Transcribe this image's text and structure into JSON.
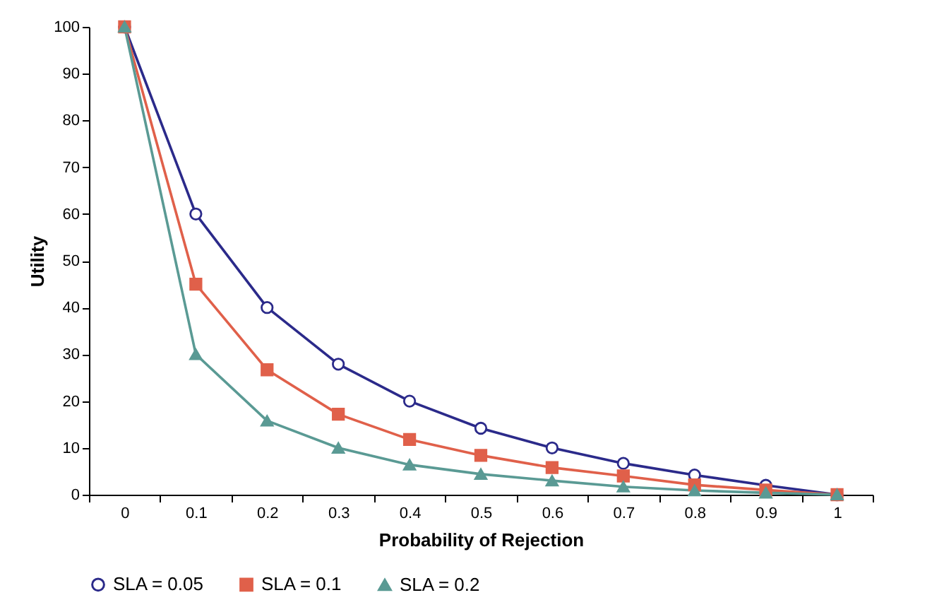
{
  "chart_data": {
    "type": "line",
    "xlabel": "Probability of Rejection",
    "ylabel": "Utility",
    "categories": [
      "0",
      "0.1",
      "0.2",
      "0.3",
      "0.4",
      "0.5",
      "0.6",
      "0.7",
      "0.8",
      "0.9",
      "1"
    ],
    "series": [
      {
        "name": "SLA =  0.05",
        "color": "#2b2a8a",
        "marker": "circle",
        "values": [
          100,
          60,
          40,
          27.9,
          20,
          14.2,
          10,
          6.7,
          4.2,
          2,
          0
        ]
      },
      {
        "name": "SLA =  0.1",
        "color": "#e0604a",
        "marker": "square",
        "values": [
          100,
          45,
          26.7,
          17.2,
          11.8,
          8.4,
          5.8,
          4,
          2.1,
          1,
          0
        ]
      },
      {
        "name": "SLA =  0.2",
        "color": "#5a9a94",
        "marker": "triangle",
        "values": [
          100,
          30,
          15.8,
          10,
          6.4,
          4.4,
          3,
          1.7,
          0.9,
          0.4,
          0
        ]
      }
    ],
    "ylim": [
      0,
      100
    ],
    "yticks": [
      0,
      10,
      20,
      30,
      40,
      50,
      60,
      70,
      80,
      90,
      100
    ],
    "grid": false,
    "legend": "bottom"
  }
}
